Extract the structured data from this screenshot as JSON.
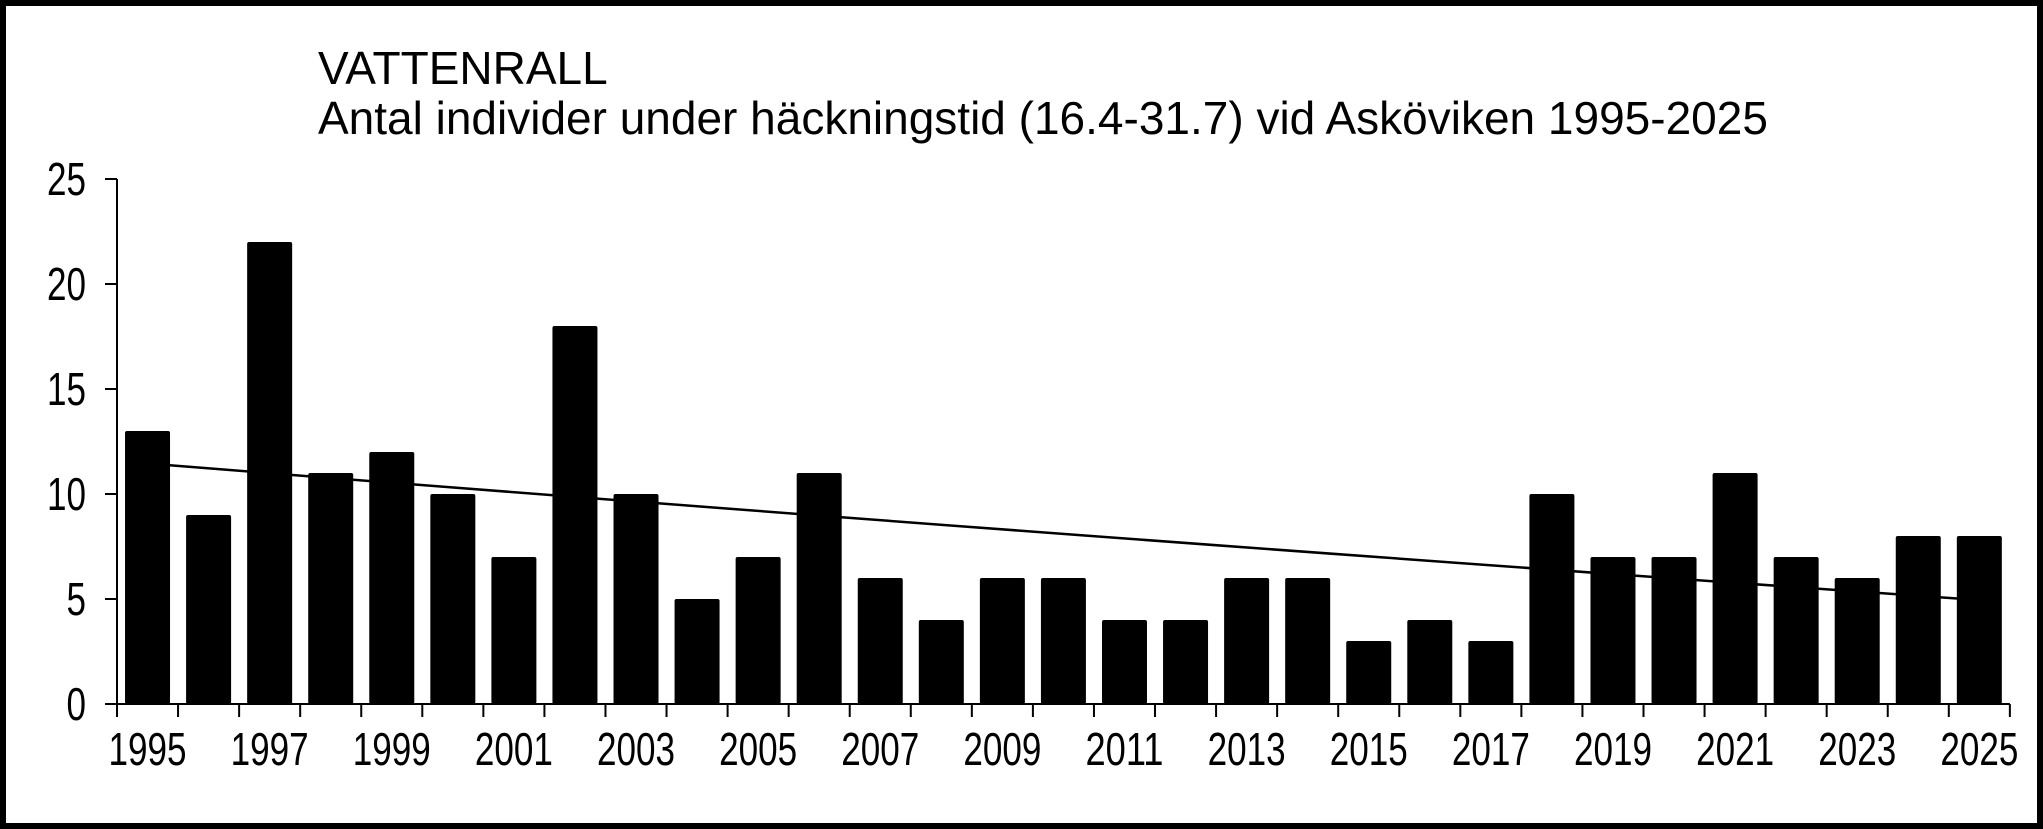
{
  "header": {
    "title": "VATTENRALL",
    "subtitle": "Antal individer under häckningstid (16.4-31.7) vid Asköviken 1995-2025"
  },
  "chart_data": {
    "type": "bar",
    "title": "VATTENRALL",
    "subtitle": "Antal individer under häckningstid (16.4-31.7) vid Asköviken 1995-2025",
    "categories": [
      1995,
      1996,
      1997,
      1998,
      1999,
      2000,
      2001,
      2002,
      2003,
      2004,
      2005,
      2006,
      2007,
      2008,
      2009,
      2010,
      2011,
      2012,
      2013,
      2014,
      2015,
      2016,
      2017,
      2018,
      2019,
      2020,
      2021,
      2022,
      2023,
      2024,
      2025
    ],
    "values": [
      13,
      9,
      22,
      11,
      12,
      10,
      7,
      18,
      10,
      5,
      7,
      11,
      6,
      4,
      6,
      6,
      4,
      4,
      6,
      6,
      3,
      4,
      3,
      10,
      7,
      7,
      11,
      7,
      6,
      8,
      8
    ],
    "xlabel": "",
    "ylabel": "",
    "ylim": [
      0,
      25
    ],
    "yticks": [
      0,
      5,
      10,
      15,
      20,
      25
    ],
    "xtick_labels": [
      "1995",
      "1997",
      "1999",
      "2001",
      "2003",
      "2005",
      "2007",
      "2009",
      "2011",
      "2013",
      "2015",
      "2017",
      "2019",
      "2021",
      "2023",
      "2025"
    ],
    "grid": false,
    "legend": null,
    "bar_color": "#000000",
    "axis_color": "#000000",
    "background_color": "#ffffff",
    "trendline": {
      "description": "declining trend line from 1995 to 2025",
      "start_year": 1995,
      "start_value": 11.45,
      "mid_value": 8.1,
      "end_year": 2025,
      "end_value": 4.95,
      "color": "#000000"
    }
  }
}
